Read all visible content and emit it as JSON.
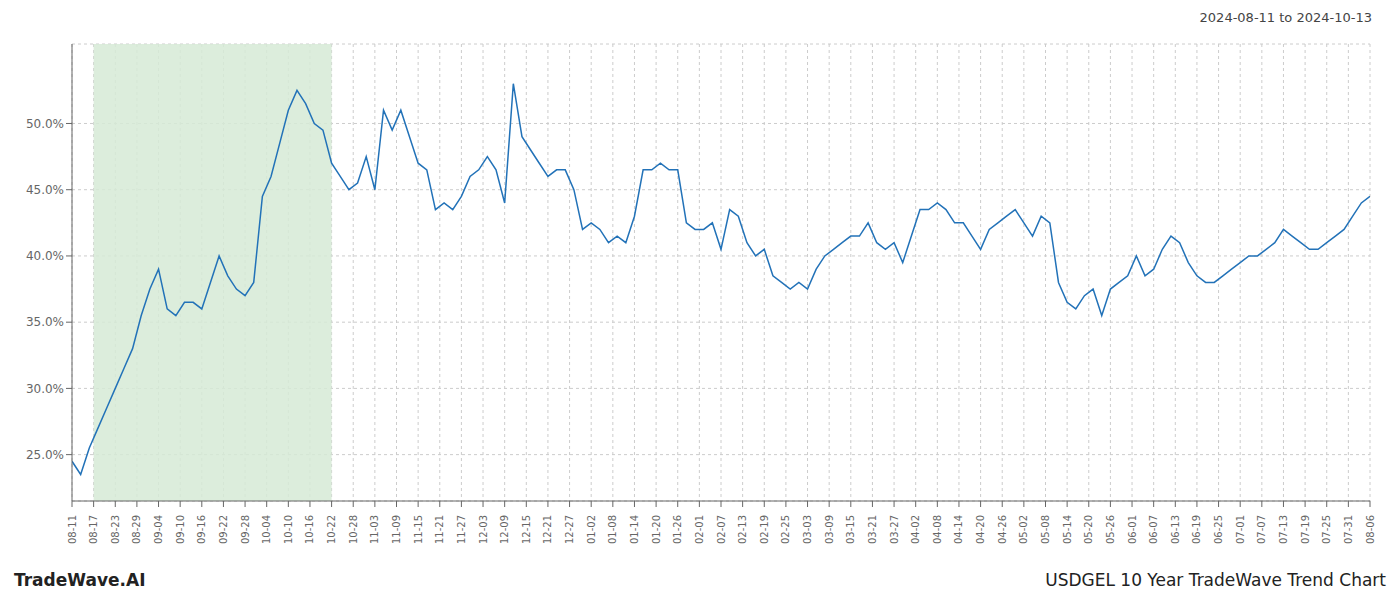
{
  "chart_data": {
    "type": "line",
    "title": "USDGEL 10 Year TradeWave Trend Chart",
    "subtitle": "2024-08-11 to 2024-10-13",
    "annotations": [
      "TradeWave.AI"
    ],
    "color": "#2272b8",
    "grid": true,
    "xlim": [
      0,
      150
    ],
    "xticks": [
      {
        "value": 0,
        "label": "08-11"
      },
      {
        "value": 2.5,
        "label": "08-17"
      },
      {
        "value": 5,
        "label": "08-23"
      },
      {
        "value": 7.5,
        "label": "08-29"
      },
      {
        "value": 10,
        "label": "09-04"
      },
      {
        "value": 12.5,
        "label": "09-10"
      },
      {
        "value": 15,
        "label": "09-16"
      },
      {
        "value": 17.5,
        "label": "09-22"
      },
      {
        "value": 20,
        "label": "09-28"
      },
      {
        "value": 22.5,
        "label": "10-04"
      },
      {
        "value": 25,
        "label": "10-10"
      },
      {
        "value": 27.5,
        "label": "10-16"
      },
      {
        "value": 30,
        "label": "10-22"
      },
      {
        "value": 32.5,
        "label": "10-28"
      },
      {
        "value": 35,
        "label": "11-03"
      },
      {
        "value": 37.5,
        "label": "11-09"
      },
      {
        "value": 40,
        "label": "11-15"
      },
      {
        "value": 42.5,
        "label": "11-21"
      },
      {
        "value": 45,
        "label": "11-27"
      },
      {
        "value": 47.5,
        "label": "12-03"
      },
      {
        "value": 50,
        "label": "12-09"
      },
      {
        "value": 52.5,
        "label": "12-15"
      },
      {
        "value": 55,
        "label": "12-21"
      },
      {
        "value": 57.5,
        "label": "12-27"
      },
      {
        "value": 60,
        "label": "01-02"
      },
      {
        "value": 62.5,
        "label": "01-08"
      },
      {
        "value": 65,
        "label": "01-14"
      },
      {
        "value": 67.5,
        "label": "01-20"
      },
      {
        "value": 70,
        "label": "01-26"
      },
      {
        "value": 72.5,
        "label": "02-01"
      },
      {
        "value": 75,
        "label": "02-07"
      },
      {
        "value": 77.5,
        "label": "02-13"
      },
      {
        "value": 80,
        "label": "02-19"
      },
      {
        "value": 82.5,
        "label": "02-25"
      },
      {
        "value": 85,
        "label": "03-03"
      },
      {
        "value": 87.5,
        "label": "03-09"
      },
      {
        "value": 90,
        "label": "03-15"
      },
      {
        "value": 92.5,
        "label": "03-21"
      },
      {
        "value": 95,
        "label": "03-27"
      },
      {
        "value": 97.5,
        "label": "04-02"
      },
      {
        "value": 100,
        "label": "04-08"
      },
      {
        "value": 102.5,
        "label": "04-14"
      },
      {
        "value": 105,
        "label": "04-20"
      },
      {
        "value": 107.5,
        "label": "04-26"
      },
      {
        "value": 110,
        "label": "05-02"
      },
      {
        "value": 112.5,
        "label": "05-08"
      },
      {
        "value": 115,
        "label": "05-14"
      },
      {
        "value": 117.5,
        "label": "05-20"
      },
      {
        "value": 120,
        "label": "05-26"
      },
      {
        "value": 122.5,
        "label": "06-01"
      },
      {
        "value": 125,
        "label": "06-07"
      },
      {
        "value": 127.5,
        "label": "06-13"
      },
      {
        "value": 130,
        "label": "06-19"
      },
      {
        "value": 132.5,
        "label": "06-25"
      },
      {
        "value": 135,
        "label": "07-01"
      },
      {
        "value": 137.5,
        "label": "07-07"
      },
      {
        "value": 140,
        "label": "07-13"
      },
      {
        "value": 142.5,
        "label": "07-19"
      },
      {
        "value": 145,
        "label": "07-25"
      },
      {
        "value": 147.5,
        "label": "07-31"
      },
      {
        "value": 150,
        "label": "08-06"
      }
    ],
    "ylim": [
      21.5,
      56.0
    ],
    "yticks": [
      {
        "value": 25.0,
        "label": "25.0%"
      },
      {
        "value": 30.0,
        "label": "30.0%"
      },
      {
        "value": 35.0,
        "label": "35.0%"
      },
      {
        "value": 40.0,
        "label": "40.0%"
      },
      {
        "value": 45.0,
        "label": "45.0%"
      },
      {
        "value": 50.0,
        "label": "50.0%"
      }
    ],
    "shaded_region": {
      "from": 2.5,
      "to": 30,
      "color": "#d6ead6"
    },
    "values": [
      24.5,
      23.5,
      25.5,
      27.0,
      28.5,
      30.0,
      31.5,
      33.0,
      35.5,
      37.5,
      39.0,
      36.0,
      35.5,
      36.5,
      36.5,
      36.0,
      38.0,
      40.0,
      38.5,
      37.5,
      37.0,
      38.0,
      44.5,
      46.0,
      48.5,
      51.0,
      52.5,
      51.5,
      50.0,
      49.5,
      47.0,
      46.0,
      45.0,
      45.5,
      47.5,
      45.0,
      51.0,
      49.5,
      51.0,
      49.0,
      47.0,
      46.5,
      43.5,
      44.0,
      43.5,
      44.5,
      46.0,
      46.5,
      47.5,
      46.5,
      44.0,
      53.0,
      49.0,
      48.0,
      47.0,
      46.0,
      46.5,
      46.5,
      45.0,
      42.0,
      42.5,
      42.0,
      41.0,
      41.5,
      41.0,
      43.0,
      46.5,
      46.5,
      47.0,
      46.5,
      46.5,
      42.5,
      42.0,
      42.0,
      42.5,
      40.5,
      43.5,
      43.0,
      41.0,
      40.0,
      40.5,
      38.5,
      38.0,
      37.5,
      38.0,
      37.5,
      39.0,
      40.0,
      40.5,
      41.0,
      41.5,
      41.5,
      42.5,
      41.0,
      40.5,
      41.0,
      39.5,
      41.5,
      43.5,
      43.5,
      44.0,
      43.5,
      42.5,
      42.5,
      41.5,
      40.5,
      42.0,
      42.5,
      43.0,
      43.5,
      42.5,
      41.5,
      43.0,
      42.5,
      38.0,
      36.5,
      36.0,
      37.0,
      37.5,
      35.5,
      37.5,
      38.0,
      38.5,
      40.0,
      38.5,
      39.0,
      40.5,
      41.5,
      41.0,
      39.5,
      38.5,
      38.0,
      38.0,
      38.5,
      39.0,
      39.5,
      40.0,
      40.0,
      40.5,
      41.0,
      42.0,
      41.5,
      41.0,
      40.5,
      40.5,
      41.0,
      41.5,
      42.0,
      43.0,
      44.0,
      44.5
    ]
  }
}
